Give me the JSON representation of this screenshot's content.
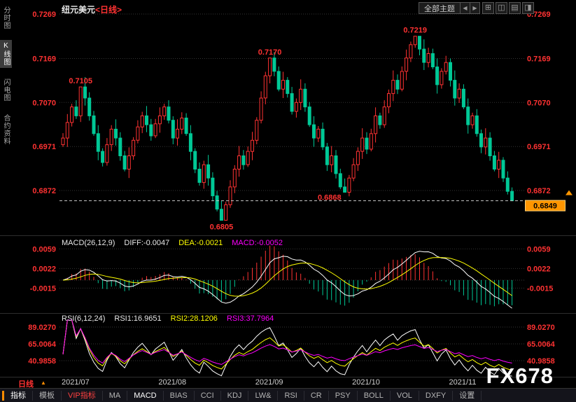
{
  "window": {
    "title_symbol": "纽元美元",
    "title_period": "<日线>"
  },
  "sidebar": {
    "items": [
      {
        "label": "分时图",
        "name": "sidebar-tab-time-chart",
        "active": false
      },
      {
        "label": "K线图",
        "name": "sidebar-tab-kline-chart",
        "active": true
      },
      {
        "label": "闪电图",
        "name": "sidebar-tab-flash-chart",
        "active": false
      },
      {
        "label": "合约资料",
        "name": "sidebar-tab-contract-info",
        "active": false
      }
    ]
  },
  "topbar": {
    "theme_selector": "全部主题",
    "prev_button": "◀",
    "next_button": "▶",
    "window_buttons": [
      "⊞",
      "◫",
      "▤",
      "◨"
    ]
  },
  "watermark": "FX678",
  "xaxis": {
    "period_label": "日线",
    "period_arrow": "▲",
    "months": [
      "2021/07",
      "2021/08",
      "2021/09",
      "2021/10",
      "2021/11"
    ]
  },
  "toolbar": {
    "tabs": [
      {
        "label": "指标",
        "name": "tab-indicators",
        "style": "active"
      },
      {
        "label": "模板",
        "name": "tab-templates",
        "style": "normal"
      },
      {
        "label": "VIP指标",
        "name": "tab-vip-indicators",
        "style": "vip"
      }
    ],
    "indicators": [
      "MA",
      "MACD",
      "BIAS",
      "CCI",
      "KDJ",
      "LW&",
      "RSI",
      "CR",
      "PSY",
      "BOLL",
      "VOL",
      "DXFY"
    ],
    "active_indicator": "MACD",
    "settings_label": "设置"
  },
  "price_panel": {
    "axis_labels": [
      "0.7269",
      "0.7169",
      "0.7070",
      "0.6971",
      "0.6872"
    ],
    "current_price": "0.6849",
    "annotations": [
      {
        "text": "0.7105",
        "index": 4,
        "side": "above"
      },
      {
        "text": "0.7170",
        "index": 47,
        "side": "above"
      },
      {
        "text": "0.7219",
        "index": 80,
        "side": "above"
      },
      {
        "text": "0.6805",
        "index": 36,
        "side": "below"
      },
      {
        "text": "0.6868",
        "index": 64,
        "side": "below-left"
      }
    ]
  },
  "macd_panel": {
    "title": "MACD(26,12,9)",
    "diff": "DIFF:-0.0047",
    "dea": "DEA:-0.0021",
    "macd": "MACD:-0.0052",
    "axis_labels": [
      "0.0059",
      "0.0022",
      "-0.0015"
    ]
  },
  "rsi_panel": {
    "title": "RSI(6,12,24)",
    "rsi1": "RSI1:16.9651",
    "rsi2": "RSI2:28.1206",
    "rsi3": "RSI3:37.7964",
    "axis_labels": [
      "89.0270",
      "65.0064",
      "40.9858"
    ]
  },
  "colors": {
    "up": "#ff3232",
    "down": "#00c896",
    "axis_text": "#ff3232",
    "grid": "#333333",
    "separator": "#2e2e2e",
    "diff_line": "#ffffff",
    "dea_line": "#ffff00",
    "rsi1_line": "#ffffff",
    "rsi2_line": "#ffff00",
    "rsi3_line": "#ff00ff",
    "current_price_line": "#c8c8c8",
    "price_tag_bg": "#ff9600",
    "price_tag_text": "#000000"
  },
  "chart_data": {
    "type": "candlestick",
    "title": "纽元美元<日线> (NZD/USD daily)",
    "x_axis": [
      "2021/07",
      "2021/08",
      "2021/09",
      "2021/10",
      "2021/11"
    ],
    "month_start_indices": [
      0,
      22,
      44,
      66,
      88
    ],
    "price_axis_ticks": [
      0.7269,
      0.7169,
      0.707,
      0.6971,
      0.6872
    ],
    "closes": [
      0.699,
      0.7025,
      0.706,
      0.704,
      0.7105,
      0.708,
      0.704,
      0.7,
      0.696,
      0.6935,
      0.6975,
      0.701,
      0.699,
      0.695,
      0.692,
      0.695,
      0.6985,
      0.7015,
      0.704,
      0.702,
      0.6995,
      0.7022,
      0.704,
      0.706,
      0.703,
      0.699,
      0.701,
      0.7035,
      0.7,
      0.696,
      0.692,
      0.689,
      0.693,
      0.69,
      0.686,
      0.683,
      0.6805,
      0.684,
      0.688,
      0.692,
      0.695,
      0.693,
      0.696,
      0.6985,
      0.703,
      0.708,
      0.713,
      0.717,
      0.714,
      0.71,
      0.712,
      0.709,
      0.705,
      0.707,
      0.71,
      0.706,
      0.702,
      0.699,
      0.701,
      0.697,
      0.693,
      0.695,
      0.691,
      0.688,
      0.6868,
      0.69,
      0.693,
      0.696,
      0.699,
      0.6965,
      0.7,
      0.704,
      0.702,
      0.706,
      0.709,
      0.712,
      0.71,
      0.714,
      0.717,
      0.72,
      0.7219,
      0.719,
      0.716,
      0.718,
      0.715,
      0.711,
      0.714,
      0.716,
      0.712,
      0.708,
      0.71,
      0.706,
      0.702,
      0.704,
      0.7,
      0.697,
      0.699,
      0.695,
      0.692,
      0.694,
      0.69,
      0.687,
      0.6849
    ],
    "key_points": {
      "highs": {
        "4": 0.7105,
        "47": 0.717,
        "80": 0.7219
      },
      "lows": {
        "36": 0.6805,
        "64": 0.6868,
        "102": 0.6849
      }
    },
    "last_price": 0.6849,
    "indicators": {
      "macd": {
        "params": [
          26,
          12,
          9
        ],
        "diff": -0.0047,
        "dea": -0.0021,
        "macd": -0.0052,
        "axis": [
          0.0059,
          0.0022,
          -0.0015
        ]
      },
      "rsi": {
        "params": [
          6,
          12,
          24
        ],
        "rsi1": 16.9651,
        "rsi2": 28.1206,
        "rsi3": 37.7964,
        "axis": [
          89.027,
          65.0064,
          40.9858
        ]
      }
    },
    "legend_position": "top-left-of-each-panel",
    "grid": "dotted-horizontal"
  }
}
